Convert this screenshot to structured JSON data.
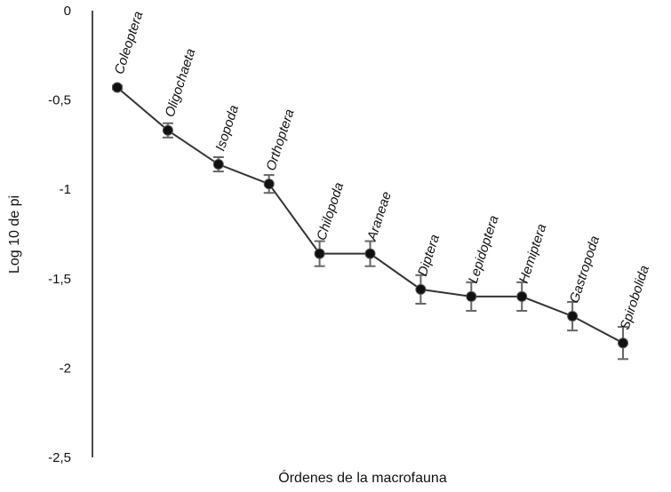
{
  "chart_data": {
    "type": "line",
    "title": "",
    "xlabel": "Órdenes de la macrofauna",
    "ylabel": "Log 10 de pi",
    "ylim": [
      -2.5,
      0
    ],
    "yticks": [
      0,
      -0.5,
      -1,
      -1.5,
      -2,
      -2.5
    ],
    "ytick_labels": [
      "0",
      "-0,5",
      "-1",
      "-1,5",
      "-2",
      "-2,5"
    ],
    "grid": false,
    "legend": "none",
    "categories": [
      "Coleoptera",
      "Oligochaeta",
      "Isopoda",
      "Orthoptera",
      "Chilopoda",
      "Araneae",
      "Diptera",
      "Lepidoptera",
      "Hemiptera",
      "Gastropoda",
      "Spirobolida"
    ],
    "series": [
      {
        "values": [
          -0.43,
          -0.67,
          -0.86,
          -0.97,
          -1.36,
          -1.36,
          -1.56,
          -1.6,
          -1.6,
          -1.71,
          -1.86
        ],
        "error": [
          0.01,
          0.04,
          0.04,
          0.05,
          0.07,
          0.07,
          0.08,
          0.08,
          0.08,
          0.08,
          0.09
        ]
      }
    ],
    "colors": {
      "line": "#333333",
      "marker": "#111111",
      "error_bar": "#666666",
      "axis": "#111111"
    }
  }
}
